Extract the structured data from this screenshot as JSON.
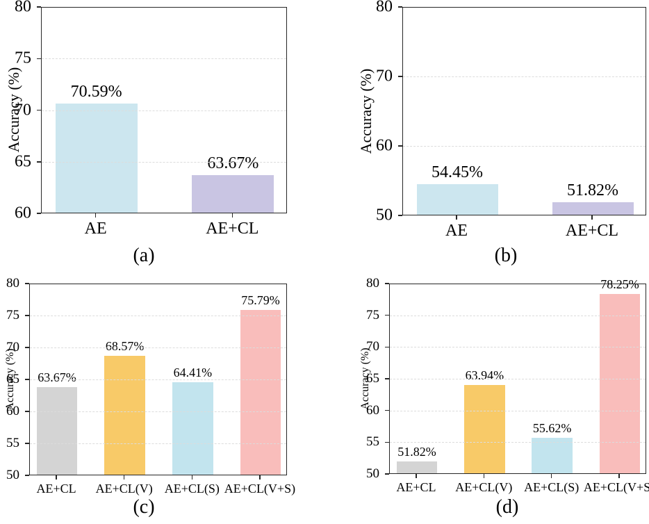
{
  "figure": {
    "background": "#ffffff",
    "text_color": "#000000",
    "spine_color": "#262626",
    "grid_color": "#dcdcdc",
    "grid_style": "dashed"
  },
  "chart_data": [
    {
      "id": "a",
      "type": "bar",
      "caption": "(a)",
      "title": "",
      "xlabel": "",
      "ylabel": "Accuracy (%)",
      "ylim": [
        60,
        80
      ],
      "yticks": [
        60,
        65,
        70,
        75,
        80
      ],
      "gridlines": [
        65,
        70,
        75
      ],
      "legend": "none",
      "categories": [
        "AE",
        "AE+CL"
      ],
      "values": [
        70.59,
        63.67
      ],
      "value_labels": [
        "70.59%",
        "63.67%"
      ],
      "bar_colors": [
        "#cce6ef",
        "#c9c5e3"
      ]
    },
    {
      "id": "b",
      "type": "bar",
      "caption": "(b)",
      "title": "",
      "xlabel": "",
      "ylabel": "Accuracy (%)",
      "ylim": [
        50,
        80
      ],
      "yticks": [
        50,
        60,
        70,
        80
      ],
      "gridlines": [
        60,
        70
      ],
      "legend": "none",
      "categories": [
        "AE",
        "AE+CL"
      ],
      "values": [
        54.45,
        51.82
      ],
      "value_labels": [
        "54.45%",
        "51.82%"
      ],
      "bar_colors": [
        "#cce6ef",
        "#c9c5e3"
      ]
    },
    {
      "id": "c",
      "type": "bar",
      "caption": "(c)",
      "title": "",
      "xlabel": "",
      "ylabel": "Accuracy (%)",
      "ylim": [
        50,
        80
      ],
      "yticks": [
        50,
        55,
        60,
        65,
        70,
        75,
        80
      ],
      "gridlines": [
        55,
        60,
        65,
        70,
        75
      ],
      "legend": "none",
      "categories": [
        "AE+CL",
        "AE+CL(V)",
        "AE+CL(S)",
        "AE+CL(V+S)"
      ],
      "values": [
        63.67,
        68.57,
        64.41,
        75.79
      ],
      "value_labels": [
        "63.67%",
        "68.57%",
        "64.41%",
        "75.79%"
      ],
      "bar_colors": [
        "#d4d4d4",
        "#f8ca68",
        "#c2e4ee",
        "#f9bdbb"
      ]
    },
    {
      "id": "d",
      "type": "bar",
      "caption": "(d)",
      "title": "",
      "xlabel": "",
      "ylabel": "Accuracy (%)",
      "ylim": [
        50,
        80
      ],
      "yticks": [
        50,
        55,
        60,
        65,
        70,
        75,
        80
      ],
      "gridlines": [
        55,
        60,
        65,
        70,
        75
      ],
      "legend": "none",
      "categories": [
        "AE+CL",
        "AE+CL(V)",
        "AE+CL(S)",
        "AE+CL(V+S)"
      ],
      "values": [
        51.82,
        63.94,
        55.62,
        78.25
      ],
      "value_labels": [
        "51.82%",
        "63.94%",
        "55.62%",
        "78.25%"
      ],
      "bar_colors": [
        "#d4d4d4",
        "#f8ca68",
        "#c2e4ee",
        "#f9bdbb"
      ]
    }
  ]
}
